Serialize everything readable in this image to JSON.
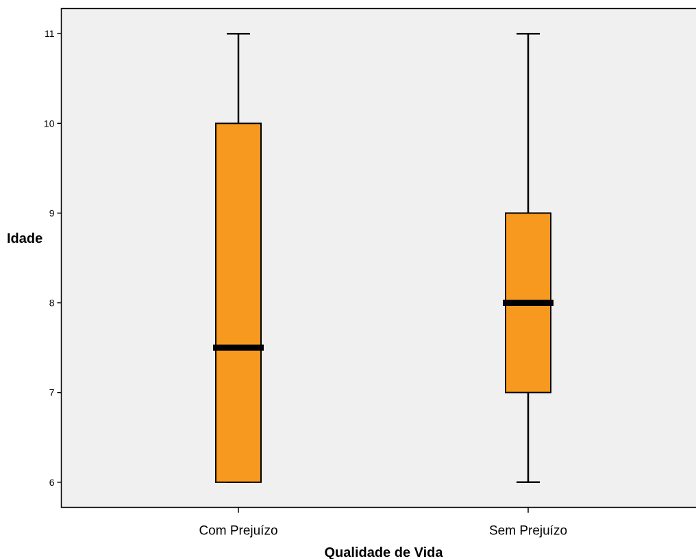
{
  "chart_data": {
    "type": "box",
    "title": "",
    "xlabel": "Qualidade de Vida",
    "ylabel": "Idade",
    "categories": [
      "Com Prejuízo",
      "Sem Prejuízo"
    ],
    "boxes": [
      {
        "category": "Com Prejuízo",
        "min": 6,
        "q1": 6,
        "median": 7.5,
        "q3": 10,
        "max": 11
      },
      {
        "category": "Sem Prejuízo",
        "min": 6,
        "q1": 7,
        "median": 8,
        "q3": 9,
        "max": 11
      }
    ],
    "yticks": [
      "6",
      "7",
      "8",
      "9",
      "10",
      "11"
    ],
    "ylim": [
      5.72,
      11.28
    ],
    "grid": false,
    "legend": "none",
    "colors": {
      "box_fill": "#F7991E",
      "plot_background": "#F0F0F0",
      "stroke": "#000000"
    }
  }
}
